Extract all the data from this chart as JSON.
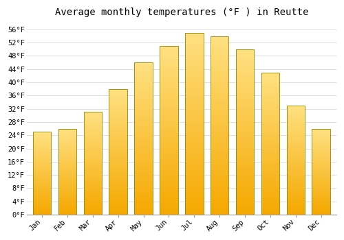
{
  "title": "Average monthly temperatures (°F ) in Reutte",
  "months": [
    "Jan",
    "Feb",
    "Mar",
    "Apr",
    "May",
    "Jun",
    "Jul",
    "Aug",
    "Sep",
    "Oct",
    "Nov",
    "Dec"
  ],
  "values": [
    25,
    26,
    31,
    38,
    46,
    51,
    55,
    54,
    50,
    43,
    33,
    26
  ],
  "bar_color_bottom": "#F5A800",
  "bar_color_top": "#FFE080",
  "bar_edge_color": "#888800",
  "background_color": "#FFFFFF",
  "grid_color": "#DDDDDD",
  "title_fontsize": 10,
  "tick_fontsize": 7.5,
  "ylabel_step": 4,
  "ylim_min": 0,
  "ylim_max": 58,
  "font_family": "monospace"
}
